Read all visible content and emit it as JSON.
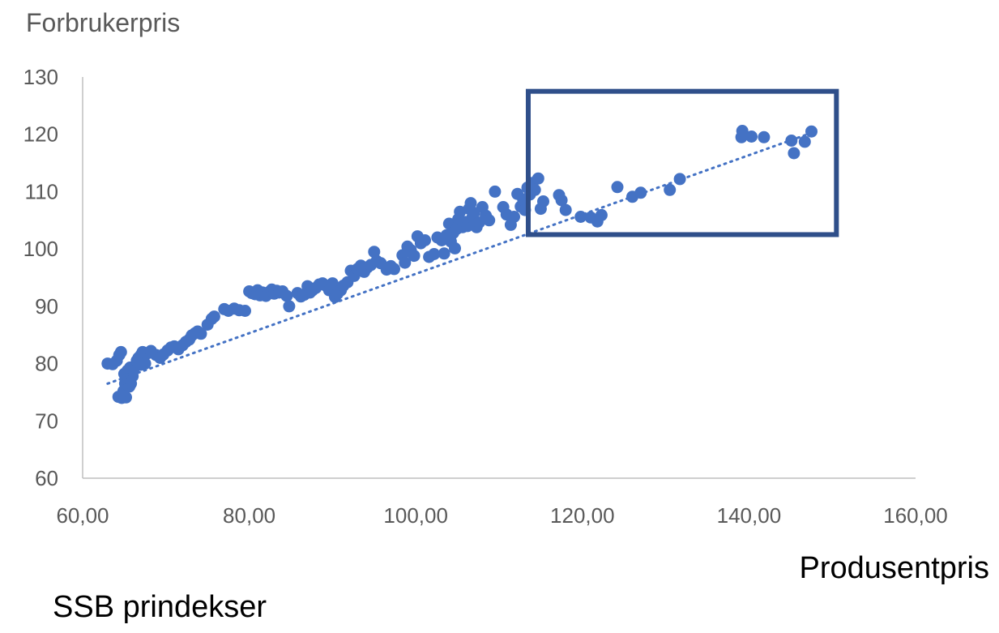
{
  "chart_data": {
    "type": "scatter",
    "ylabel": "Forbrukerpris",
    "xlabel": "Produsentpris",
    "source_label": "SSB prindekser",
    "xlim": [
      60,
      160
    ],
    "ylim": [
      60,
      130
    ],
    "x_ticks": [
      60,
      80,
      100,
      120,
      140,
      160
    ],
    "x_tick_labels": [
      "60,00",
      "80,00",
      "100,00",
      "120,00",
      "140,00",
      "160,00"
    ],
    "y_ticks": [
      60,
      70,
      80,
      90,
      100,
      110,
      120,
      130
    ],
    "y_tick_labels": [
      "60",
      "70",
      "80",
      "90",
      "100",
      "110",
      "120",
      "130"
    ],
    "grid": false,
    "trendline": {
      "style": "dotted",
      "x": [
        63,
        148
      ],
      "y": [
        76.5,
        120.5
      ]
    },
    "highlight_box": {
      "x": [
        113.5,
        150.5
      ],
      "y": [
        102.5,
        127.5
      ]
    },
    "colors": {
      "points": "#4472C4",
      "trendline": "#4472C4",
      "box": "#2F4F8A",
      "axis": "#BFBFBF",
      "text": "#595959"
    },
    "series": [
      {
        "points": [
          [
            63.0,
            80.0
          ],
          [
            63.6,
            79.9
          ],
          [
            64.1,
            80.5
          ],
          [
            64.4,
            81.5
          ],
          [
            64.6,
            82.0
          ],
          [
            64.3,
            74.2
          ],
          [
            64.7,
            74.0
          ],
          [
            65.0,
            74.3
          ],
          [
            65.2,
            74.1
          ],
          [
            64.9,
            75.2
          ],
          [
            65.1,
            76.5
          ],
          [
            65.3,
            77.5
          ],
          [
            65.0,
            78.2
          ],
          [
            65.4,
            78.8
          ],
          [
            65.6,
            76.0
          ],
          [
            65.8,
            76.5
          ],
          [
            65.5,
            77.4
          ],
          [
            65.9,
            78.0
          ],
          [
            66.1,
            79.0
          ],
          [
            66.0,
            77.8
          ],
          [
            65.7,
            79.3
          ],
          [
            66.3,
            79.5
          ],
          [
            66.5,
            80.5
          ],
          [
            66.7,
            81.0
          ],
          [
            67.0,
            81.5
          ],
          [
            67.2,
            82.0
          ],
          [
            67.5,
            80.0
          ],
          [
            67.0,
            79.8
          ],
          [
            67.8,
            81.8
          ],
          [
            68.2,
            82.2
          ],
          [
            68.8,
            81.5
          ],
          [
            69.3,
            81.0
          ],
          [
            69.7,
            81.6
          ],
          [
            70.2,
            82.3
          ],
          [
            70.6,
            82.8
          ],
          [
            71.0,
            83.0
          ],
          [
            71.5,
            82.5
          ],
          [
            72.0,
            83.2
          ],
          [
            72.4,
            83.8
          ],
          [
            72.8,
            84.2
          ],
          [
            73.1,
            84.9
          ],
          [
            73.5,
            85.3
          ],
          [
            73.8,
            85.6
          ],
          [
            74.2,
            85.2
          ],
          [
            75.0,
            86.8
          ],
          [
            75.5,
            87.8
          ],
          [
            75.8,
            88.2
          ],
          [
            77.0,
            89.5
          ],
          [
            77.5,
            89.2
          ],
          [
            78.2,
            89.6
          ],
          [
            78.8,
            89.3
          ],
          [
            79.5,
            89.2
          ],
          [
            80.0,
            92.6
          ],
          [
            80.3,
            92.3
          ],
          [
            80.7,
            92.1
          ],
          [
            81.0,
            92.8
          ],
          [
            81.3,
            91.9
          ],
          [
            81.6,
            92.4
          ],
          [
            82.0,
            91.8
          ],
          [
            82.4,
            92.5
          ],
          [
            82.7,
            92.9
          ],
          [
            83.0,
            92.2
          ],
          [
            83.3,
            92.7
          ],
          [
            83.6,
            92.4
          ],
          [
            84.0,
            92.6
          ],
          [
            84.5,
            91.8
          ],
          [
            84.8,
            90.0
          ],
          [
            85.8,
            92.3
          ],
          [
            86.2,
            91.7
          ],
          [
            86.6,
            92.0
          ],
          [
            87.0,
            93.5
          ],
          [
            87.3,
            92.4
          ],
          [
            87.6,
            92.8
          ],
          [
            88.0,
            93.2
          ],
          [
            88.4,
            93.8
          ],
          [
            88.8,
            94.0
          ],
          [
            89.2,
            93.6
          ],
          [
            89.6,
            92.8
          ],
          [
            90.0,
            94.0
          ],
          [
            90.3,
            91.6
          ],
          [
            90.6,
            92.2
          ],
          [
            91.0,
            92.8
          ],
          [
            91.3,
            93.6
          ],
          [
            91.8,
            94.2
          ],
          [
            92.2,
            96.2
          ],
          [
            92.6,
            95.3
          ],
          [
            93.0,
            96.5
          ],
          [
            93.4,
            97.1
          ],
          [
            93.8,
            96.0
          ],
          [
            94.2,
            96.8
          ],
          [
            94.6,
            97.2
          ],
          [
            95.0,
            99.5
          ],
          [
            95.3,
            97.9
          ],
          [
            95.8,
            97.5
          ],
          [
            96.5,
            96.4
          ],
          [
            97.0,
            97.0
          ],
          [
            97.4,
            96.5
          ],
          [
            98.4,
            98.9
          ],
          [
            98.7,
            97.6
          ],
          [
            99.0,
            100.4
          ],
          [
            99.4,
            99.8
          ],
          [
            99.8,
            98.8
          ],
          [
            100.2,
            102.2
          ],
          [
            100.6,
            101.0
          ],
          [
            101.1,
            101.5
          ],
          [
            101.6,
            98.6
          ],
          [
            102.2,
            99.1
          ],
          [
            102.6,
            102.0
          ],
          [
            103.1,
            101.5
          ],
          [
            103.4,
            99.2
          ],
          [
            103.7,
            102.4
          ],
          [
            104.0,
            104.4
          ],
          [
            104.2,
            101.3
          ],
          [
            104.5,
            102.8
          ],
          [
            104.7,
            100.1
          ],
          [
            104.9,
            103.5
          ],
          [
            105.1,
            105.2
          ],
          [
            105.3,
            106.5
          ],
          [
            105.6,
            103.8
          ],
          [
            105.9,
            104.7
          ],
          [
            106.2,
            104.0
          ],
          [
            106.4,
            107.0
          ],
          [
            106.6,
            108.0
          ],
          [
            106.8,
            105.5
          ],
          [
            107.0,
            106.3
          ],
          [
            107.3,
            103.8
          ],
          [
            107.6,
            104.6
          ],
          [
            108.0,
            107.3
          ],
          [
            108.4,
            105.8
          ],
          [
            108.8,
            105.0
          ],
          [
            109.5,
            110.0
          ],
          [
            110.5,
            107.3
          ],
          [
            110.9,
            106.0
          ],
          [
            111.4,
            104.2
          ],
          [
            111.8,
            105.6
          ],
          [
            112.2,
            109.6
          ],
          [
            112.6,
            107.4
          ],
          [
            112.9,
            108.6
          ],
          [
            113.1,
            106.8
          ],
          [
            113.4,
            110.7
          ],
          [
            113.7,
            109.5
          ],
          [
            114.0,
            111.5
          ],
          [
            114.3,
            110.3
          ],
          [
            114.7,
            112.3
          ],
          [
            115.0,
            107.0
          ],
          [
            115.3,
            108.3
          ],
          [
            117.2,
            109.4
          ],
          [
            117.5,
            108.5
          ],
          [
            118.0,
            106.8
          ],
          [
            119.8,
            105.6
          ],
          [
            121.0,
            105.5
          ],
          [
            121.8,
            104.8
          ],
          [
            122.3,
            105.9
          ],
          [
            124.2,
            110.8
          ],
          [
            126.0,
            109.1
          ],
          [
            127.0,
            109.8
          ],
          [
            130.5,
            110.3
          ],
          [
            131.7,
            112.2
          ],
          [
            139.1,
            119.5
          ],
          [
            139.2,
            120.6
          ],
          [
            140.3,
            119.6
          ],
          [
            141.8,
            119.5
          ],
          [
            145.1,
            118.9
          ],
          [
            145.4,
            116.7
          ],
          [
            146.7,
            118.7
          ],
          [
            147.5,
            120.5
          ]
        ]
      }
    ]
  }
}
